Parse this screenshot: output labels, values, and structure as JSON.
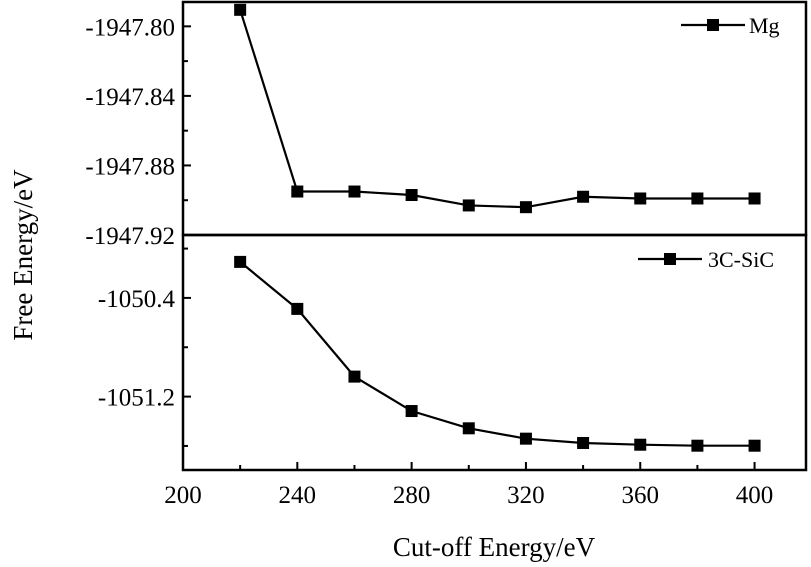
{
  "chart_data": {
    "type": "line",
    "ylabel": "Free Energy/eV",
    "xlabel": "Cut-off Energy/eV",
    "x": [
      220,
      240,
      260,
      280,
      300,
      320,
      340,
      360,
      380,
      400
    ],
    "xlim": [
      200,
      418
    ],
    "xticks": [
      200,
      240,
      280,
      320,
      360,
      400
    ],
    "xtick_labels": [
      "200",
      "240",
      "280",
      "320",
      "360",
      "400"
    ],
    "grid": false,
    "panels": [
      {
        "name": "Mg",
        "legend_position": "top-right",
        "ylim": [
          -1947.92,
          -1947.786
        ],
        "yticks_major": [
          -1947.8,
          -1947.84,
          -1947.88,
          -1947.92
        ],
        "ytick_labels": [
          "-1947.80",
          "-1947.84",
          "-1947.88",
          "-1947.92"
        ],
        "yticks_minor": [
          -1947.82,
          -1947.86,
          -1947.9
        ],
        "series": [
          {
            "name": "Mg",
            "marker": "square",
            "color": "#000000",
            "values": [
              -1947.7905,
              -1947.895,
              -1947.895,
              -1947.897,
              -1947.903,
              -1947.904,
              -1947.898,
              -1947.899,
              -1947.899,
              -1947.899
            ]
          }
        ]
      },
      {
        "name": "3C-SiC",
        "legend_position": "top-right",
        "ylim": [
          -1051.795,
          -1049.89
        ],
        "yticks_major": [
          -1050.4,
          -1051.2
        ],
        "ytick_labels": [
          "-1050.4",
          "-1051.2"
        ],
        "yticks_minor": [
          -1050.0,
          -1050.8,
          -1051.6
        ],
        "series": [
          {
            "name": "3C-SiC",
            "marker": "square",
            "color": "#000000",
            "values": [
              -1050.108,
              -1050.489,
              -1051.038,
              -1051.317,
              -1051.457,
              -1051.541,
              -1051.576,
              -1051.59,
              -1051.598,
              -1051.598
            ]
          }
        ]
      }
    ]
  }
}
